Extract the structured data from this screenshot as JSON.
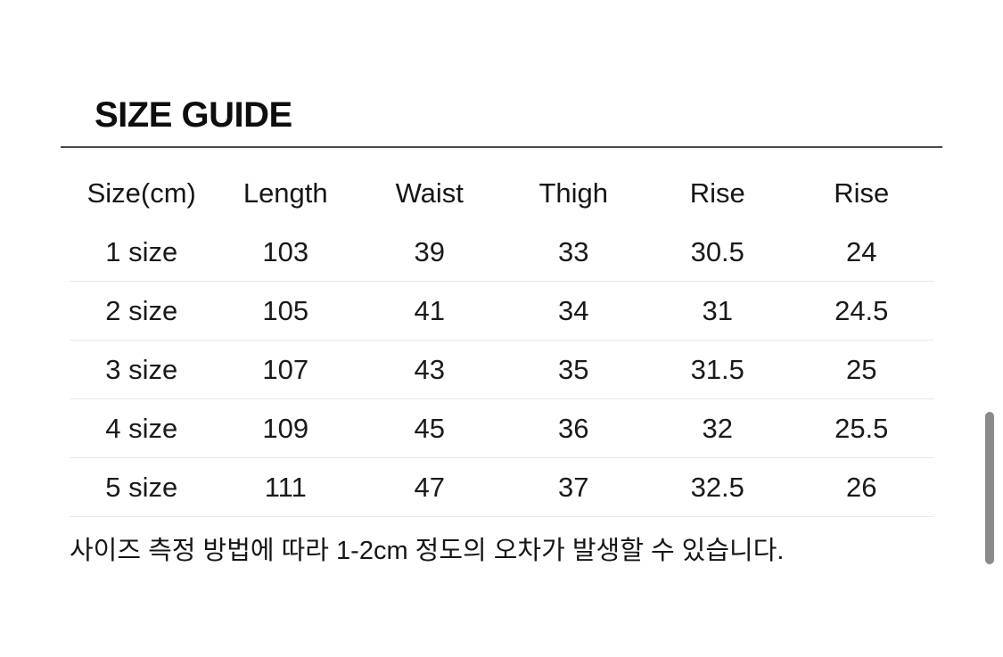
{
  "page": {
    "title": "SIZE GUIDE",
    "note": "사이즈 측정 방법에 따라 1-2cm 정도의 오차가 발생할 수 있습니다."
  },
  "table": {
    "headers": [
      "Size(cm)",
      "Length",
      "Waist",
      "Thigh",
      "Rise",
      "Rise"
    ],
    "rows": [
      {
        "cells": [
          "1 size",
          "103",
          "39",
          "33",
          "30.5",
          "24"
        ]
      },
      {
        "cells": [
          "2 size",
          "105",
          "41",
          "34",
          "31",
          "24.5"
        ]
      },
      {
        "cells": [
          "3 size",
          "107",
          "43",
          "35",
          "31.5",
          "25"
        ]
      },
      {
        "cells": [
          "4 size",
          "109",
          "45",
          "36",
          "32",
          "25.5"
        ]
      },
      {
        "cells": [
          "5 size",
          "111",
          "47",
          "37",
          "32.5",
          "26"
        ]
      }
    ]
  },
  "colors": {
    "bg": "#ffffff",
    "text": "#141414",
    "divider_dark": "#4a4a4a",
    "divider_light": "#e8e8e8",
    "scrollbar": "#8a8a8a"
  }
}
